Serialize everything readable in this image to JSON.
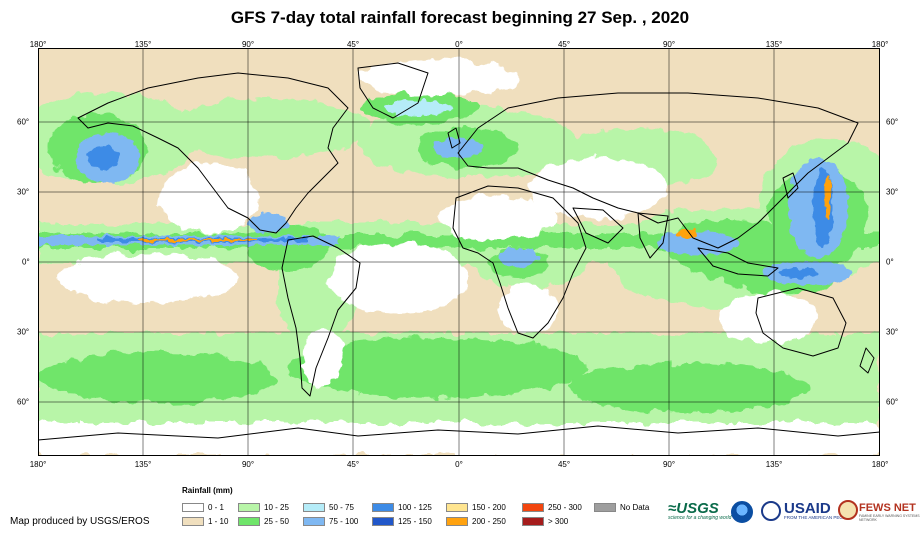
{
  "title": "GFS 7-day total rainfall forecast beginning 27 Sep. , 2020",
  "map": {
    "lon_labels": [
      "180°",
      "135°",
      "90°",
      "45°",
      "0°",
      "45°",
      "90°",
      "135°",
      "180°"
    ],
    "lat_labels": [
      "60°",
      "30°",
      "0°",
      "30°",
      "60°"
    ]
  },
  "legend": {
    "title": "Rainfall (mm)",
    "items": [
      {
        "label": "0 - 1",
        "color": "#ffffff"
      },
      {
        "label": "1 - 10",
        "color": "#f0dfbe"
      },
      {
        "label": "10 - 25",
        "color": "#b8f5a8"
      },
      {
        "label": "25 - 50",
        "color": "#6fe56a"
      },
      {
        "label": "50 - 75",
        "color": "#b5ecf8"
      },
      {
        "label": "75 - 100",
        "color": "#7fb8f2"
      },
      {
        "label": "100 - 125",
        "color": "#3d8be6"
      },
      {
        "label": "125 - 150",
        "color": "#2157c9"
      },
      {
        "label": "150 - 200",
        "color": "#ffe590"
      },
      {
        "label": "200 - 250",
        "color": "#ffa20f"
      },
      {
        "label": "250 - 300",
        "color": "#f2450e"
      },
      {
        "label": "> 300",
        "color": "#a51c1c"
      },
      {
        "label": "No Data",
        "color": "#9e9e9e"
      }
    ]
  },
  "credit": "Map produced by USGS/EROS",
  "logos": {
    "usgs": "≈USGS",
    "usgs_tagline": "science for a changing world",
    "usaid": "USAID",
    "usaid_tagline": "FROM THE AMERICAN PEOPLE",
    "fews": "FEWS NET",
    "fews_tagline": "FAMINE EARLY WARNING SYSTEMS NETWORK"
  }
}
